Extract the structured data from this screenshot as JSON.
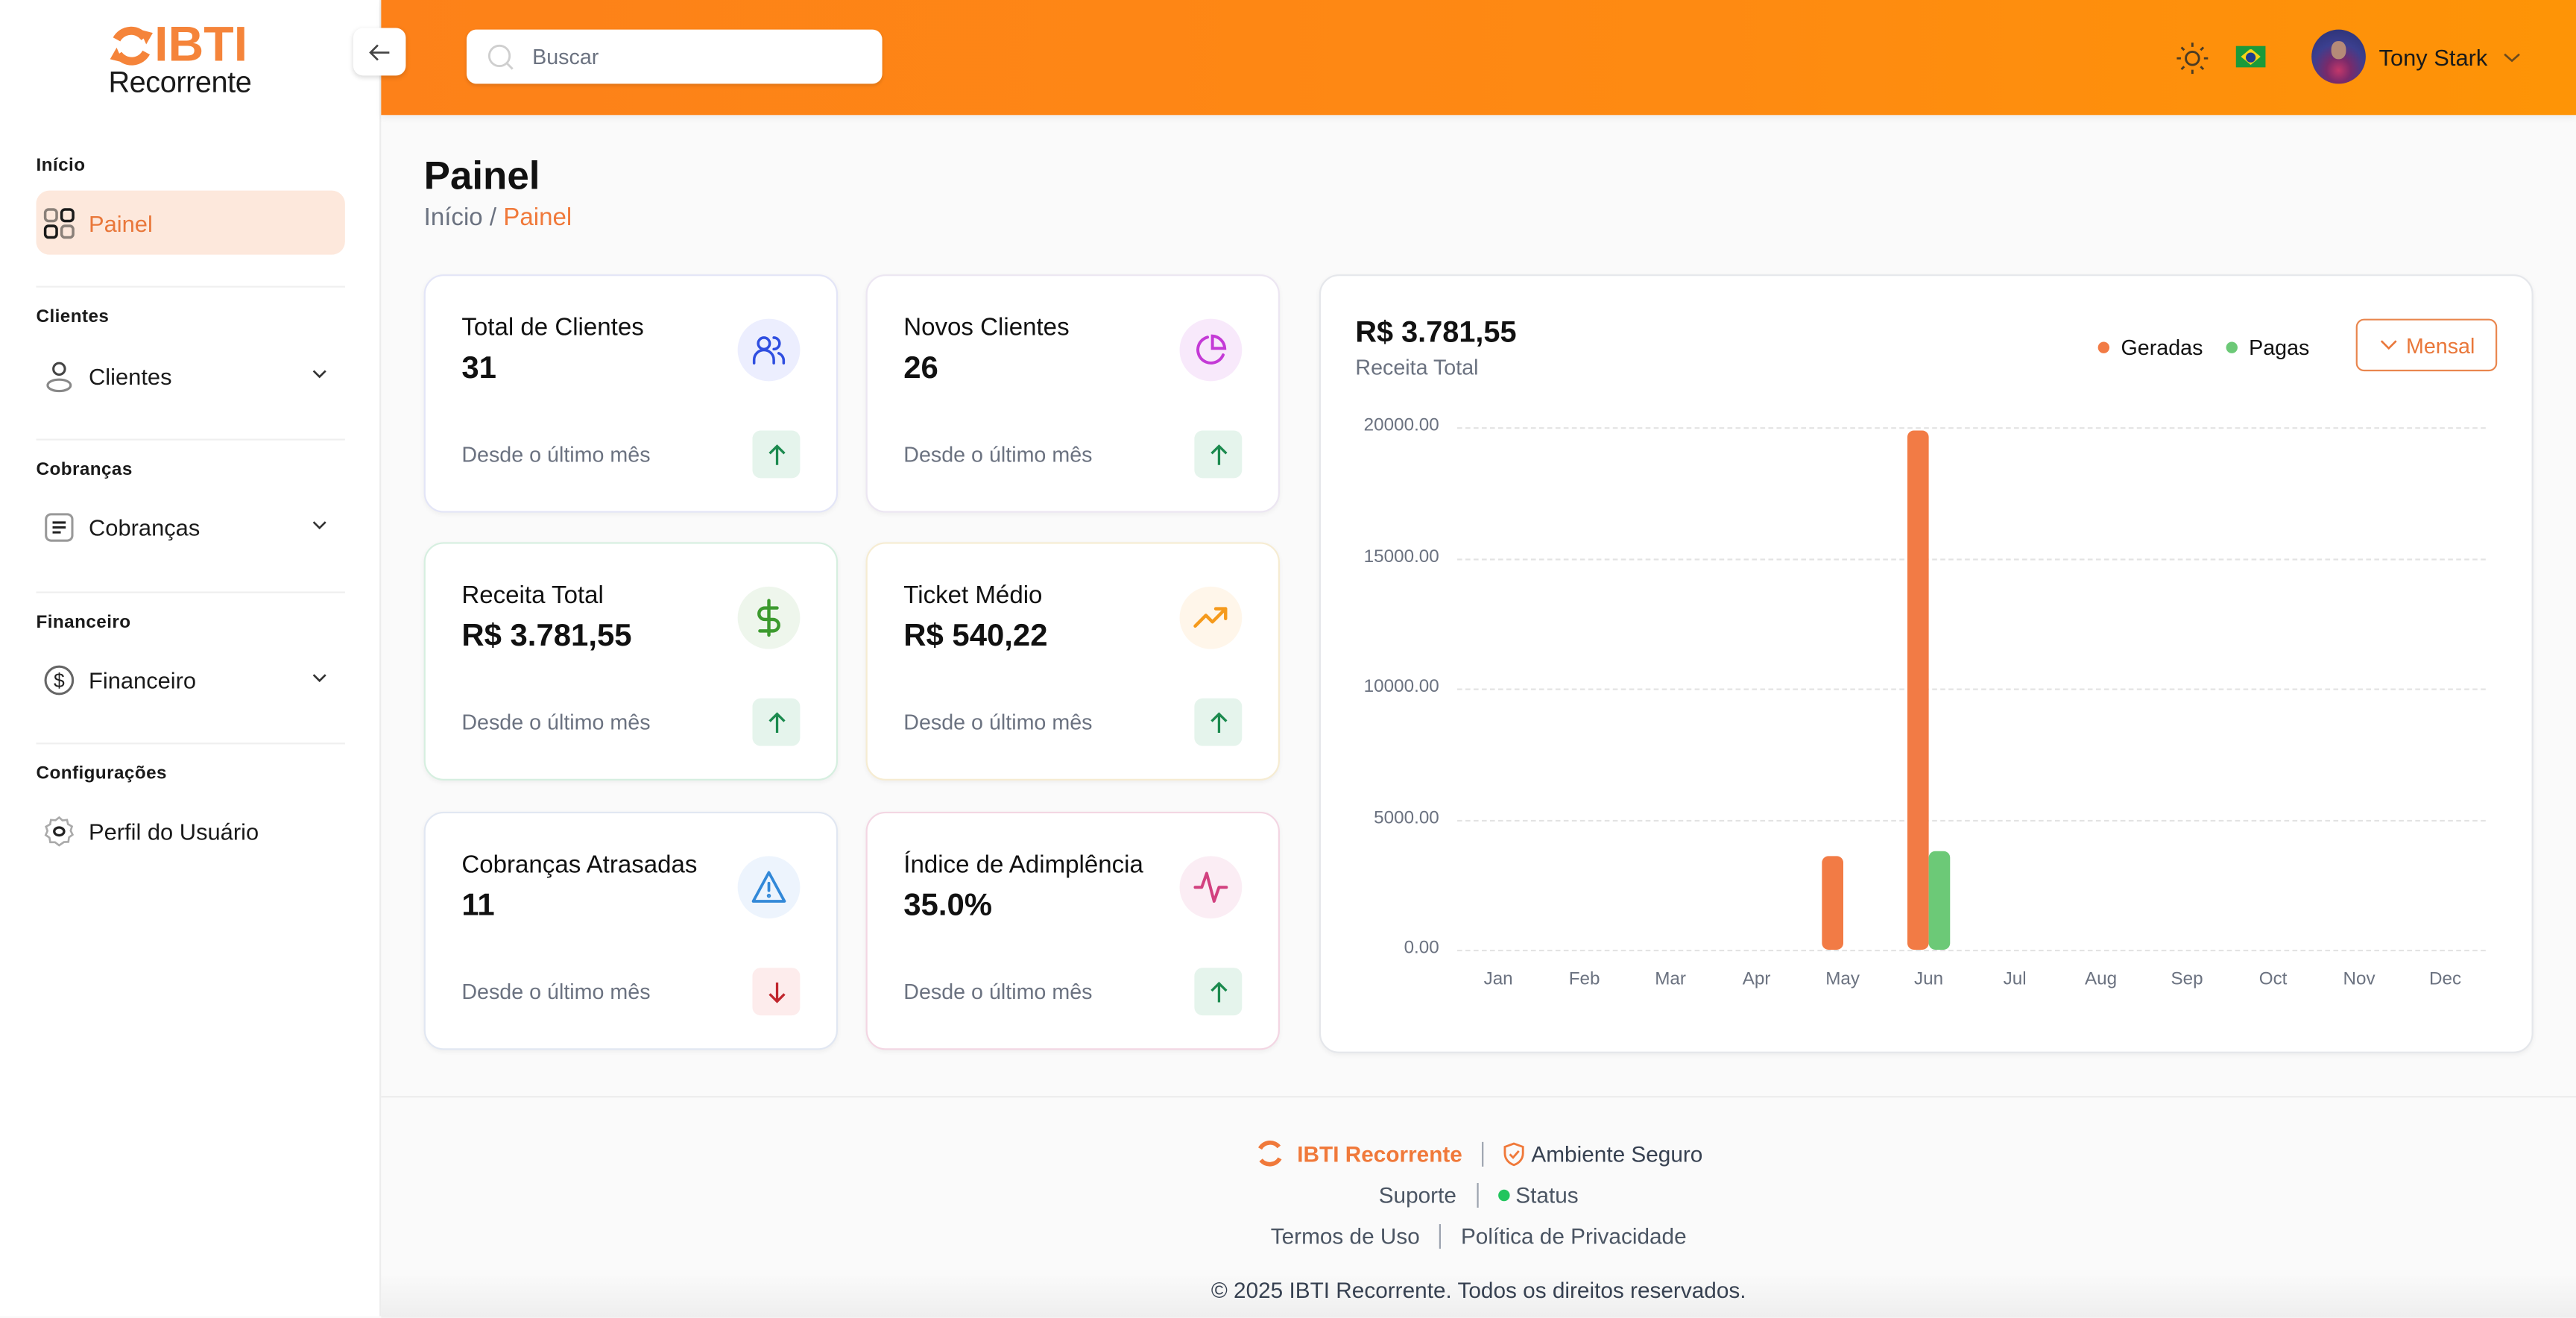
{
  "sidebar": {
    "logo": {
      "brand": "IBTI",
      "sub": "Recorrente"
    },
    "sections": [
      {
        "title": "Início",
        "items": [
          {
            "label": "Painel",
            "icon": "grid-icon",
            "active": true
          }
        ]
      },
      {
        "title": "Clientes",
        "items": [
          {
            "label": "Clientes",
            "icon": "user-icon",
            "expandable": true
          }
        ]
      },
      {
        "title": "Cobranças",
        "items": [
          {
            "label": "Cobranças",
            "icon": "document-icon",
            "expandable": true
          }
        ]
      },
      {
        "title": "Financeiro",
        "items": [
          {
            "label": "Financeiro",
            "icon": "dollar-circle-icon",
            "expandable": true
          }
        ]
      },
      {
        "title": "Configurações",
        "items": [
          {
            "label": "Perfil do Usuário",
            "icon": "gear-icon"
          }
        ]
      }
    ]
  },
  "header": {
    "search_placeholder": "Buscar",
    "user_name": "Tony Stark",
    "language": "pt-BR",
    "colors": {
      "gradient_start": "#fd8119",
      "gradient_end": "#fe9406"
    }
  },
  "page": {
    "title": "Painel",
    "breadcrumb": {
      "root": "Início",
      "separator": "/",
      "current": "Painel"
    }
  },
  "cards": [
    {
      "title": "Total de Clientes",
      "value": "31",
      "footer": "Desde o último mês",
      "trend": "up",
      "icon": "users-icon",
      "icon_color": "#2f4ee0",
      "icon_bg": "#eceefe",
      "border": "#e3e5f7"
    },
    {
      "title": "Novos Clientes",
      "value": "26",
      "footer": "Desde o último mês",
      "trend": "up",
      "icon": "pie-chart-icon",
      "icon_color": "#c43ad6",
      "icon_bg": "#f8e9fb",
      "border": "#ece6f2"
    },
    {
      "title": "Receita Total",
      "value": "R$ 3.781,55",
      "footer": "Desde o último mês",
      "trend": "up",
      "icon": "dollar-icon",
      "icon_color": "#3c9a2e",
      "icon_bg": "#eef6ec",
      "border": "#d6efe0"
    },
    {
      "title": "Ticket Médio",
      "value": "R$ 540,22",
      "footer": "Desde o último mês",
      "trend": "up",
      "icon": "trending-up-icon",
      "icon_color": "#f59a1c",
      "icon_bg": "#fff6ea",
      "border": "#f6ecd2"
    },
    {
      "title": "Cobranças Atrasadas",
      "value": "11",
      "footer": "Desde o último mês",
      "trend": "down",
      "icon": "warning-icon",
      "icon_color": "#3288d8",
      "icon_bg": "#edf4fd",
      "border": "#e1e7f2"
    },
    {
      "title": "Índice de Adimplência",
      "value": "35.0%",
      "footer": "Desde o último mês",
      "trend": "up",
      "icon": "activity-icon",
      "icon_color": "#d2417f",
      "icon_bg": "#fbedf4",
      "border": "#f3d6e3"
    }
  ],
  "chart": {
    "total": "R$ 3.781,55",
    "subtitle": "Receita Total",
    "legend": [
      {
        "label": "Geradas",
        "color": "#f27b45"
      },
      {
        "label": "Pagas",
        "color": "#6cc977"
      }
    ],
    "period_label": "Mensal"
  },
  "chart_data": {
    "type": "bar",
    "title": "Receita Total",
    "categories": [
      "Jan",
      "Feb",
      "Mar",
      "Apr",
      "May",
      "Jun",
      "Jul",
      "Aug",
      "Sep",
      "Oct",
      "Nov",
      "Dec"
    ],
    "series": [
      {
        "name": "Geradas",
        "color": "#f27b45",
        "values": [
          0,
          0,
          0,
          0,
          3560,
          19900,
          0,
          0,
          0,
          0,
          0,
          0
        ]
      },
      {
        "name": "Pagas",
        "color": "#6cc977",
        "values": [
          0,
          0,
          0,
          0,
          0,
          3781.55,
          0,
          0,
          0,
          0,
          0,
          0
        ]
      }
    ],
    "yticks": [
      "0.00",
      "5000.00",
      "10000.00",
      "15000.00",
      "20000.00"
    ],
    "ylim": [
      0,
      20000
    ],
    "xlabel": "",
    "ylabel": "",
    "grid": true,
    "legend_position": "top-right"
  },
  "footer": {
    "brand": "IBTI Recorrente",
    "secure": "Ambiente Seguro",
    "support": "Suporte",
    "status": "Status",
    "terms": "Termos de Uso",
    "privacy": "Política de Privacidade",
    "copyright": "© 2025 IBTI Recorrente. Todos os direitos reservados."
  }
}
